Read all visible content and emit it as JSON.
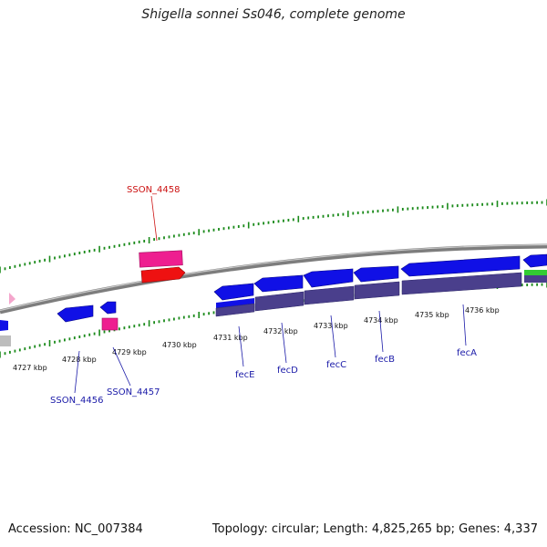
{
  "header": {
    "title": "Shigella sonnei Ss046, complete genome"
  },
  "footer": {
    "accession": "Accession: NC_007384",
    "topology": "Topology: circular; Length: 4,825,265 bp; Genes: 4,337"
  },
  "colors": {
    "backbone": "#8c8c8c",
    "tick": "#1a8a1a",
    "forward_gene": "#1010e6",
    "cds": "#4a3f8c",
    "pseudo_gene": "#ee1f90",
    "pseudo_cds": "#ee1111",
    "rna": "#33cc33",
    "label_blue": "#1a1aa8",
    "label_red": "#cc1111"
  },
  "scale_labels": [
    "4727 kbp",
    "4728 kbp",
    "4729 kbp",
    "4730 kbp",
    "4731 kbp",
    "4732 kbp",
    "4733 kbp",
    "4734 kbp",
    "4735 kbp",
    "4736 kbp"
  ],
  "gene_labels": [
    {
      "name": "SSON_4458",
      "color": "red"
    },
    {
      "name": "SSON_4456",
      "color": "blue"
    },
    {
      "name": "SSON_4457",
      "color": "blue"
    },
    {
      "name": "fecE",
      "color": "blue"
    },
    {
      "name": "fecD",
      "color": "blue"
    },
    {
      "name": "fecC",
      "color": "blue"
    },
    {
      "name": "fecB",
      "color": "blue"
    },
    {
      "name": "fecA",
      "color": "blue"
    }
  ]
}
